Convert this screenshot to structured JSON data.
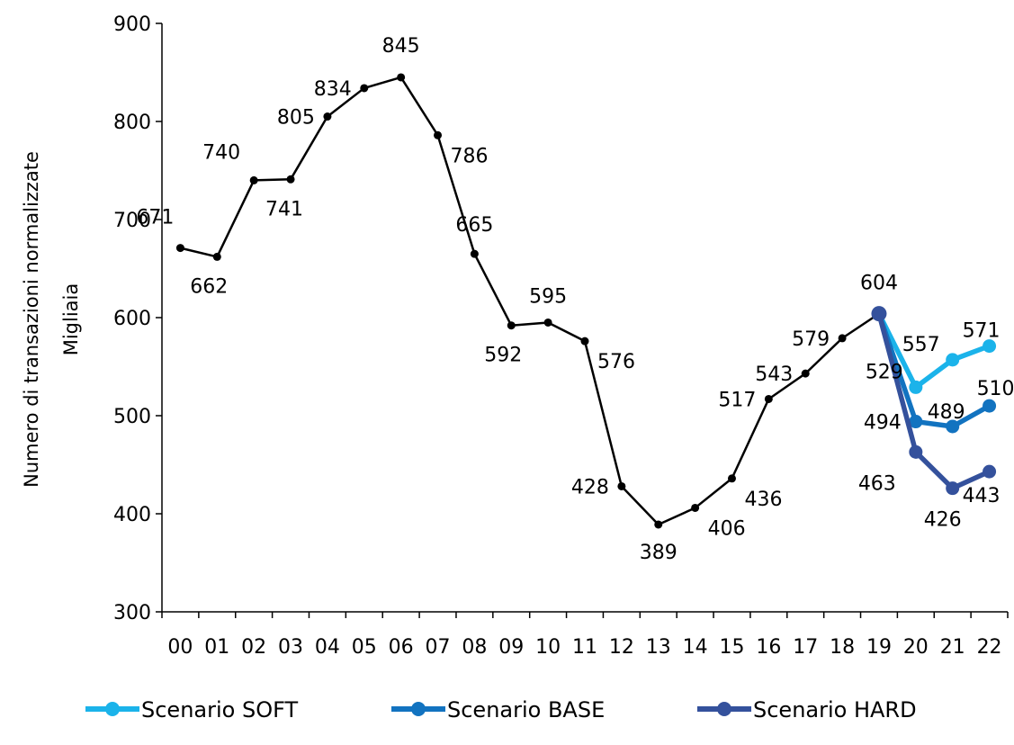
{
  "chart_data": {
    "type": "line",
    "ylabel_line1": "Numero di transazioni normalizzate",
    "ylabel_line2": "Migliaia",
    "ylim": [
      300,
      900
    ],
    "yticks": [
      "300",
      "400",
      "500",
      "600",
      "700",
      "800",
      "900"
    ],
    "categories": [
      "00",
      "01",
      "02",
      "03",
      "04",
      "05",
      "06",
      "07",
      "08",
      "09",
      "10",
      "11",
      "12",
      "13",
      "14",
      "15",
      "16",
      "17",
      "18",
      "19",
      "20",
      "21",
      "22"
    ],
    "historical": {
      "values": [
        671,
        662,
        740,
        741,
        805,
        834,
        845,
        786,
        665,
        592,
        595,
        576,
        428,
        389,
        406,
        436,
        517,
        543,
        579,
        604
      ],
      "labels": [
        "671",
        "662",
        "740",
        "741",
        "805",
        "834",
        "845",
        "786",
        "665",
        "592",
        "595",
        "576",
        "428",
        "389",
        "406",
        "436",
        "517",
        "543",
        "579",
        "604"
      ],
      "color": "#000000"
    },
    "series": [
      {
        "name": "Scenario SOFT",
        "color": "#1bb3ea",
        "x": [
          "19",
          "20",
          "21",
          "22"
        ],
        "values": [
          604,
          529,
          557,
          571
        ],
        "labels": [
          "",
          "529",
          "557",
          "571"
        ]
      },
      {
        "name": "Scenario BASE",
        "color": "#1273c0",
        "x": [
          "19",
          "20",
          "21",
          "22"
        ],
        "values": [
          604,
          494,
          489,
          510
        ],
        "labels": [
          "",
          "494",
          "489",
          "510"
        ]
      },
      {
        "name": "Scenario HARD",
        "color": "#34519c",
        "x": [
          "19",
          "20",
          "21",
          "22"
        ],
        "values": [
          604,
          463,
          426,
          443
        ],
        "labels": [
          "",
          "463",
          "426",
          "443"
        ]
      }
    ],
    "legend_position": "bottom",
    "grid": false
  }
}
